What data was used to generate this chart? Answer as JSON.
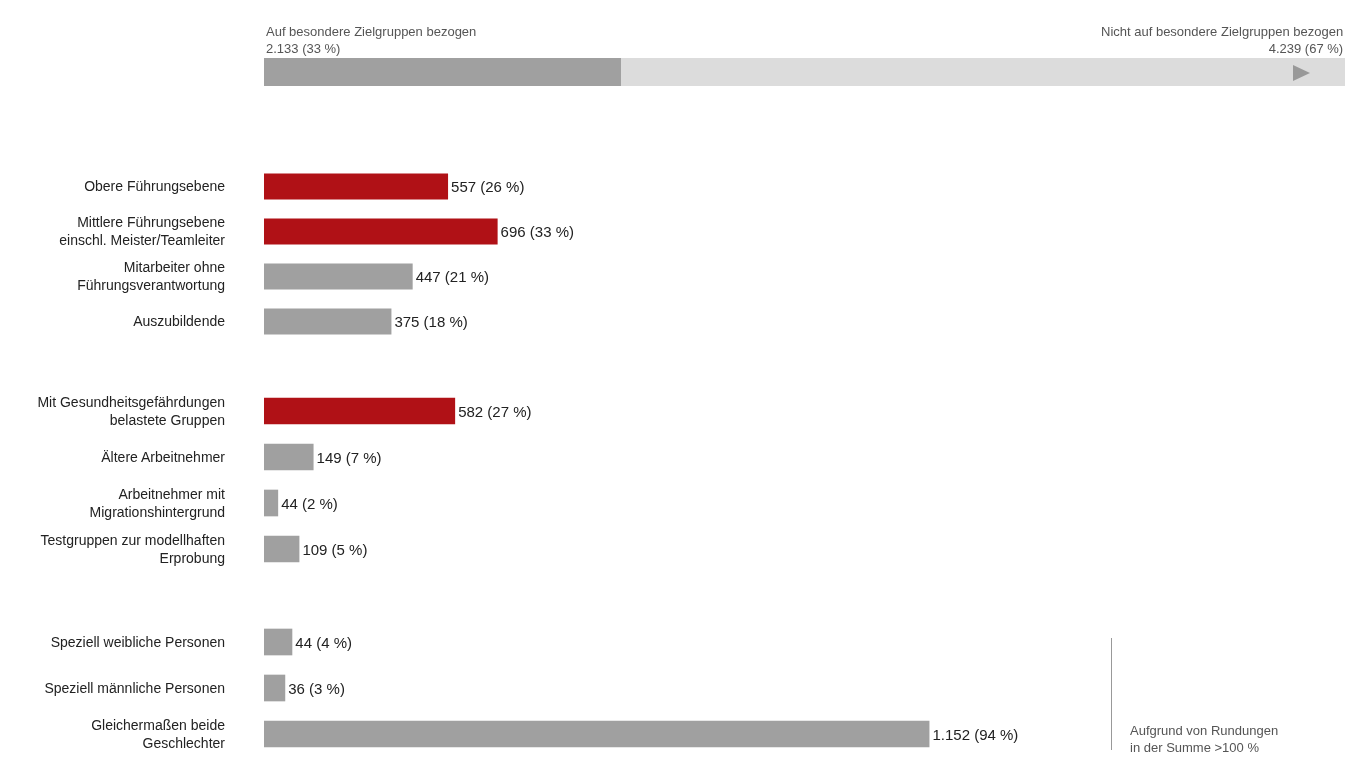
{
  "chart_data": [
    {
      "type": "bar",
      "orientation": "horizontal",
      "stacked": true,
      "categories": [
        null
      ],
      "xlim": [
        0,
        100
      ],
      "tick_labels": false,
      "series": [
        {
          "name": "Auf besondere Zielgruppen bezogen",
          "color": "#a0a0a0",
          "values": [
            33
          ],
          "value_labels": [
            "2.133 (33 %)"
          ]
        },
        {
          "name": "Nicht auf besondere Zielgruppen bezogen",
          "color": "#dcdcdc",
          "values": [
            67
          ],
          "value_labels": [
            "4.239 (67 %)"
          ]
        }
      ]
    },
    {
      "type": "bar",
      "orientation": "horizontal",
      "tick_labels": "y",
      "categories": [
        "Obere Führungsebene",
        "Mittlere Führungsebene\neinschl. Meister/Teamleiter",
        "Mitarbeiter ohne\nFührungsverantwortung",
        "Auszubildende"
      ],
      "values": [
        26,
        33,
        21,
        18
      ],
      "colors": [
        "#b01116",
        "#b01116",
        "#a0a0a0",
        "#a0a0a0"
      ],
      "value_labels": [
        "557 (26 %)",
        "696 (33 %)",
        "447 (21 %)",
        "375 (18 %)"
      ]
    },
    {
      "type": "bar",
      "orientation": "horizontal",
      "tick_labels": "y",
      "categories": [
        "Mit Gesundheitsgefährdungen\nbelastete Gruppen",
        "Ältere Arbeitnehmer",
        "Arbeitnehmer mit\nMigrationshintergrund",
        "Testgruppen zur modellhaften\nErprobung"
      ],
      "values": [
        27,
        7,
        2,
        5
      ],
      "colors": [
        "#b01116",
        "#a0a0a0",
        "#a0a0a0",
        "#a0a0a0"
      ],
      "value_labels": [
        "582 (27 %)",
        "149 (7 %)",
        "44 (2 %)",
        "109 (5 %)"
      ]
    },
    {
      "type": "bar",
      "orientation": "horizontal",
      "tick_labels": "y",
      "categories": [
        "Speziell weibliche Personen",
        "Speziell männliche Personen",
        "Gleichermaßen beide\nGeschlechter"
      ],
      "values": [
        4,
        3,
        94
      ],
      "colors": [
        "#a0a0a0",
        "#a0a0a0",
        "#a0a0a0"
      ],
      "value_labels": [
        "44 (4 %)",
        "36 (3 %)",
        "1.152 (94 %)"
      ],
      "annotations": [
        "Aufgrund von Rundungen\nin der Summe >100 %"
      ]
    }
  ]
}
